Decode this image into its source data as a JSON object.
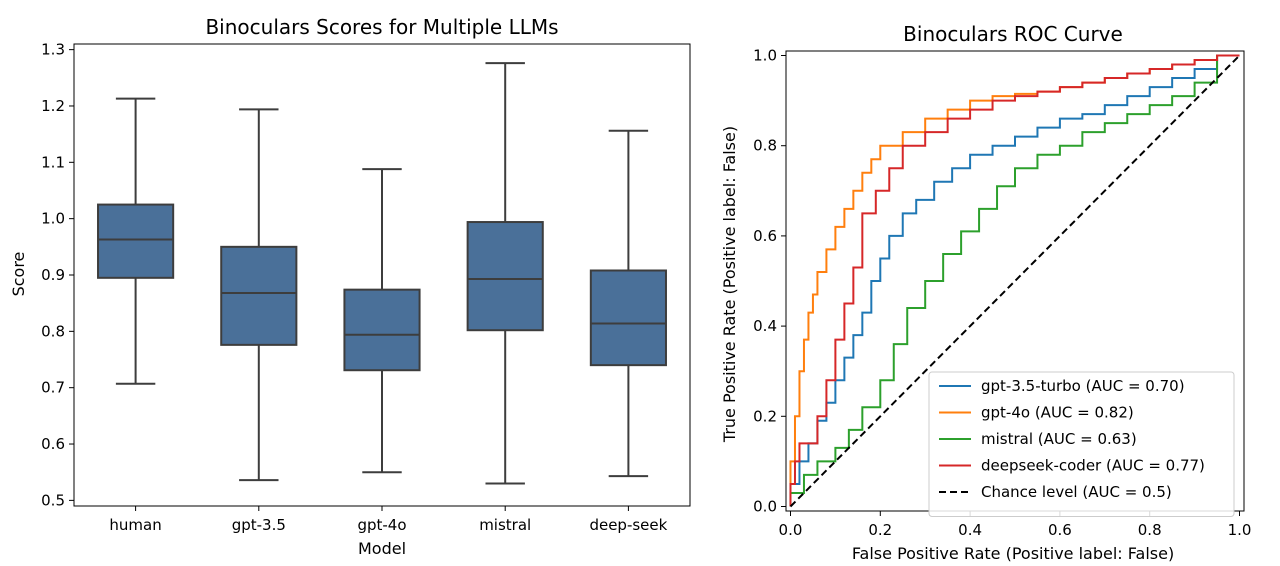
{
  "chart_data": [
    {
      "type": "box",
      "title": "Binoculars Scores for Multiple LLMs",
      "xlabel": "Model",
      "ylabel": "Score",
      "ylim": [
        0.49,
        1.31
      ],
      "yticks": [
        "0.5",
        "0.6",
        "0.7",
        "0.8",
        "0.9",
        "1.0",
        "1.1",
        "1.2",
        "1.3"
      ],
      "ytick_values": [
        0.5,
        0.6,
        0.7,
        0.8,
        0.9,
        1.0,
        1.1,
        1.2,
        1.3
      ],
      "box_color": "#4a7099",
      "edge_color": "#3d3d3d",
      "categories": [
        "human",
        "gpt-3.5",
        "gpt-4o",
        "mistral",
        "deep-seek"
      ],
      "boxes": [
        {
          "whislo": 0.707,
          "q1": 0.895,
          "med": 0.963,
          "q3": 1.025,
          "whishi": 1.213
        },
        {
          "whislo": 0.536,
          "q1": 0.776,
          "med": 0.868,
          "q3": 0.95,
          "whishi": 1.194
        },
        {
          "whislo": 0.55,
          "q1": 0.731,
          "med": 0.794,
          "q3": 0.874,
          "whishi": 1.088
        },
        {
          "whislo": 0.53,
          "q1": 0.802,
          "med": 0.893,
          "q3": 0.994,
          "whishi": 1.276
        },
        {
          "whislo": 0.543,
          "q1": 0.74,
          "med": 0.814,
          "q3": 0.908,
          "whishi": 1.156
        }
      ],
      "grid": false
    },
    {
      "type": "line",
      "title": "Binoculars ROC Curve",
      "xlabel": "False Positive Rate (Positive label: False)",
      "ylabel": "True Positive Rate (Positive label: False)",
      "xlim": [
        -0.01,
        1.01
      ],
      "ylim": [
        -0.01,
        1.01
      ],
      "xticks": [
        "0.0",
        "0.2",
        "0.4",
        "0.6",
        "0.8",
        "1.0"
      ],
      "yticks": [
        "0.0",
        "0.2",
        "0.4",
        "0.6",
        "0.8",
        "1.0"
      ],
      "tick_values": [
        0,
        0.2,
        0.4,
        0.6,
        0.8,
        1.0
      ],
      "legend_position": "lower-right",
      "grid": false,
      "series": [
        {
          "name": "gpt-3.5-turbo (AUC = 0.70)",
          "color": "#1f77b4",
          "dash": false,
          "x": [
            0,
            0.02,
            0.04,
            0.06,
            0.08,
            0.1,
            0.12,
            0.14,
            0.16,
            0.18,
            0.2,
            0.22,
            0.25,
            0.28,
            0.32,
            0.36,
            0.4,
            0.45,
            0.5,
            0.55,
            0.6,
            0.65,
            0.7,
            0.75,
            0.8,
            0.85,
            0.9,
            0.95,
            1.0
          ],
          "y": [
            0,
            0.05,
            0.1,
            0.14,
            0.19,
            0.23,
            0.28,
            0.33,
            0.38,
            0.43,
            0.5,
            0.55,
            0.6,
            0.65,
            0.68,
            0.72,
            0.75,
            0.78,
            0.8,
            0.82,
            0.84,
            0.86,
            0.87,
            0.89,
            0.91,
            0.93,
            0.95,
            0.97,
            1.0
          ]
        },
        {
          "name": "gpt-4o (AUC = 0.82)",
          "color": "#ff7f0e",
          "dash": false,
          "x": [
            0,
            0.01,
            0.02,
            0.03,
            0.04,
            0.05,
            0.06,
            0.08,
            0.1,
            0.12,
            0.14,
            0.16,
            0.18,
            0.2,
            0.25,
            0.3,
            0.35,
            0.4,
            0.45,
            0.5,
            0.55,
            0.6,
            0.65,
            0.7,
            0.75,
            0.8,
            0.85,
            0.9,
            0.95,
            1.0
          ],
          "y": [
            0,
            0.1,
            0.2,
            0.3,
            0.37,
            0.43,
            0.47,
            0.52,
            0.57,
            0.62,
            0.66,
            0.7,
            0.74,
            0.77,
            0.8,
            0.83,
            0.86,
            0.88,
            0.9,
            0.91,
            0.915,
            0.92,
            0.93,
            0.94,
            0.95,
            0.96,
            0.97,
            0.98,
            0.99,
            1.0
          ]
        },
        {
          "name": "mistral (AUC = 0.63)",
          "color": "#2ca02c",
          "dash": false,
          "x": [
            0,
            0.03,
            0.06,
            0.1,
            0.13,
            0.16,
            0.2,
            0.23,
            0.26,
            0.3,
            0.34,
            0.38,
            0.42,
            0.46,
            0.5,
            0.55,
            0.6,
            0.65,
            0.7,
            0.75,
            0.8,
            0.85,
            0.9,
            0.95,
            1.0
          ],
          "y": [
            0,
            0.03,
            0.07,
            0.1,
            0.13,
            0.17,
            0.22,
            0.28,
            0.36,
            0.44,
            0.5,
            0.56,
            0.61,
            0.66,
            0.71,
            0.75,
            0.78,
            0.8,
            0.83,
            0.85,
            0.87,
            0.89,
            0.91,
            0.94,
            1.0
          ]
        },
        {
          "name": "deepseek-coder (AUC = 0.77)",
          "color": "#d62728",
          "dash": false,
          "x": [
            0,
            0.01,
            0.02,
            0.03,
            0.06,
            0.08,
            0.1,
            0.12,
            0.14,
            0.16,
            0.19,
            0.22,
            0.25,
            0.3,
            0.35,
            0.4,
            0.45,
            0.5,
            0.55,
            0.6,
            0.65,
            0.7,
            0.75,
            0.8,
            0.85,
            0.9,
            0.95,
            1.0
          ],
          "y": [
            0,
            0.05,
            0.1,
            0.14,
            0.14,
            0.2,
            0.28,
            0.37,
            0.45,
            0.53,
            0.65,
            0.7,
            0.75,
            0.8,
            0.83,
            0.86,
            0.88,
            0.9,
            0.91,
            0.92,
            0.93,
            0.94,
            0.95,
            0.96,
            0.97,
            0.98,
            0.99,
            1.0
          ]
        },
        {
          "name": "Chance level (AUC = 0.5)",
          "color": "#000000",
          "dash": true,
          "x": [
            0,
            1
          ],
          "y": [
            0,
            1
          ]
        }
      ]
    }
  ]
}
